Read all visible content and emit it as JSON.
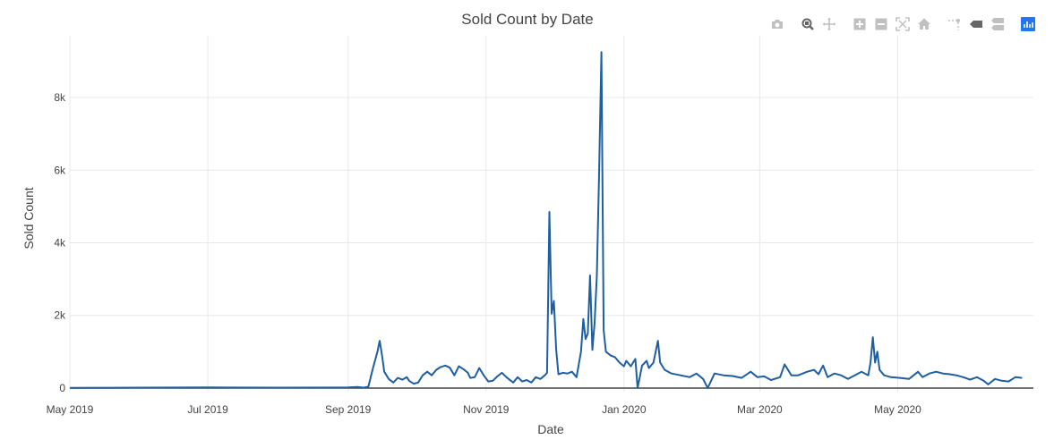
{
  "chart_data": {
    "type": "line",
    "title": "Sold Count by Date",
    "xlabel": "Date",
    "ylabel": "Sold Count",
    "x_range": [
      "2019-05-01",
      "2020-06-30"
    ],
    "ylim": [
      -100,
      9700
    ],
    "x_ticks": [
      {
        "date": "2019-05-01",
        "label": "May 2019"
      },
      {
        "date": "2019-07-01",
        "label": "Jul 2019"
      },
      {
        "date": "2019-09-01",
        "label": "Sep 2019"
      },
      {
        "date": "2019-11-01",
        "label": "Nov 2019"
      },
      {
        "date": "2020-01-01",
        "label": "Jan 2020"
      },
      {
        "date": "2020-03-01",
        "label": "Mar 2020"
      },
      {
        "date": "2020-05-01",
        "label": "May 2020"
      }
    ],
    "y_ticks": [
      {
        "value": 0,
        "label": "0"
      },
      {
        "value": 2000,
        "label": "2k"
      },
      {
        "value": 4000,
        "label": "4k"
      },
      {
        "value": 6000,
        "label": "6k"
      },
      {
        "value": 8000,
        "label": "8k"
      }
    ],
    "grid": true,
    "line_color": "#1f5f9f",
    "series": [
      {
        "name": "",
        "points": [
          [
            "2019-05-01",
            5
          ],
          [
            "2019-06-01",
            10
          ],
          [
            "2019-07-01",
            15
          ],
          [
            "2019-08-01",
            10
          ],
          [
            "2019-09-01",
            15
          ],
          [
            "2019-09-05",
            30
          ],
          [
            "2019-09-08",
            10
          ],
          [
            "2019-09-10",
            40
          ],
          [
            "2019-09-12",
            550
          ],
          [
            "2019-09-14",
            1000
          ],
          [
            "2019-09-15",
            1300
          ],
          [
            "2019-09-16",
            900
          ],
          [
            "2019-09-17",
            450
          ],
          [
            "2019-09-19",
            250
          ],
          [
            "2019-09-21",
            150
          ],
          [
            "2019-09-23",
            280
          ],
          [
            "2019-09-25",
            230
          ],
          [
            "2019-09-27",
            300
          ],
          [
            "2019-09-28",
            200
          ],
          [
            "2019-09-30",
            120
          ],
          [
            "2019-10-02",
            150
          ],
          [
            "2019-10-04",
            350
          ],
          [
            "2019-10-06",
            450
          ],
          [
            "2019-10-08",
            350
          ],
          [
            "2019-10-10",
            500
          ],
          [
            "2019-10-12",
            580
          ],
          [
            "2019-10-14",
            620
          ],
          [
            "2019-10-16",
            560
          ],
          [
            "2019-10-18",
            350
          ],
          [
            "2019-10-20",
            600
          ],
          [
            "2019-10-22",
            520
          ],
          [
            "2019-10-24",
            420
          ],
          [
            "2019-10-25",
            280
          ],
          [
            "2019-10-27",
            300
          ],
          [
            "2019-10-29",
            550
          ],
          [
            "2019-10-31",
            350
          ],
          [
            "2019-11-02",
            180
          ],
          [
            "2019-11-04",
            200
          ],
          [
            "2019-11-06",
            320
          ],
          [
            "2019-11-08",
            420
          ],
          [
            "2019-11-10",
            300
          ],
          [
            "2019-11-12",
            200
          ],
          [
            "2019-11-13",
            150
          ],
          [
            "2019-11-15",
            300
          ],
          [
            "2019-11-17",
            180
          ],
          [
            "2019-11-19",
            220
          ],
          [
            "2019-11-21",
            150
          ],
          [
            "2019-11-23",
            300
          ],
          [
            "2019-11-25",
            250
          ],
          [
            "2019-11-27",
            350
          ],
          [
            "2019-11-28",
            420
          ],
          [
            "2019-11-29",
            4850
          ],
          [
            "2019-11-30",
            2050
          ],
          [
            "2019-12-01",
            2400
          ],
          [
            "2019-12-02",
            1050
          ],
          [
            "2019-12-03",
            380
          ],
          [
            "2019-12-05",
            420
          ],
          [
            "2019-12-07",
            400
          ],
          [
            "2019-12-09",
            450
          ],
          [
            "2019-12-11",
            300
          ],
          [
            "2019-12-13",
            1000
          ],
          [
            "2019-12-14",
            1900
          ],
          [
            "2019-12-15",
            1350
          ],
          [
            "2019-12-16",
            1500
          ],
          [
            "2019-12-17",
            3100
          ],
          [
            "2019-12-18",
            1050
          ],
          [
            "2019-12-19",
            1800
          ],
          [
            "2019-12-20",
            3100
          ],
          [
            "2019-12-21",
            5900
          ],
          [
            "2019-12-22",
            9250
          ],
          [
            "2019-12-23",
            1600
          ],
          [
            "2019-12-24",
            1000
          ],
          [
            "2019-12-26",
            900
          ],
          [
            "2019-12-28",
            850
          ],
          [
            "2019-12-30",
            700
          ],
          [
            "2020-01-01",
            600
          ],
          [
            "2020-01-02",
            750
          ],
          [
            "2020-01-04",
            600
          ],
          [
            "2020-01-06",
            800
          ],
          [
            "2020-01-07",
            0
          ],
          [
            "2020-01-09",
            620
          ],
          [
            "2020-01-11",
            750
          ],
          [
            "2020-01-12",
            550
          ],
          [
            "2020-01-14",
            700
          ],
          [
            "2020-01-16",
            1300
          ],
          [
            "2020-01-17",
            700
          ],
          [
            "2020-01-19",
            500
          ],
          [
            "2020-01-22",
            400
          ],
          [
            "2020-01-26",
            350
          ],
          [
            "2020-01-30",
            300
          ],
          [
            "2020-02-02",
            400
          ],
          [
            "2020-02-05",
            250
          ],
          [
            "2020-02-07",
            0
          ],
          [
            "2020-02-10",
            400
          ],
          [
            "2020-02-14",
            350
          ],
          [
            "2020-02-18",
            330
          ],
          [
            "2020-02-22",
            280
          ],
          [
            "2020-02-26",
            450
          ],
          [
            "2020-02-29",
            300
          ],
          [
            "2020-03-03",
            320
          ],
          [
            "2020-03-06",
            220
          ],
          [
            "2020-03-10",
            300
          ],
          [
            "2020-03-12",
            650
          ],
          [
            "2020-03-15",
            350
          ],
          [
            "2020-03-18",
            350
          ],
          [
            "2020-03-22",
            450
          ],
          [
            "2020-03-25",
            500
          ],
          [
            "2020-03-27",
            380
          ],
          [
            "2020-03-29",
            620
          ],
          [
            "2020-03-31",
            300
          ],
          [
            "2020-04-03",
            400
          ],
          [
            "2020-04-06",
            350
          ],
          [
            "2020-04-09",
            250
          ],
          [
            "2020-04-12",
            350
          ],
          [
            "2020-04-15",
            450
          ],
          [
            "2020-04-18",
            350
          ],
          [
            "2020-04-19",
            700
          ],
          [
            "2020-04-20",
            1400
          ],
          [
            "2020-04-21",
            700
          ],
          [
            "2020-04-22",
            1000
          ],
          [
            "2020-04-23",
            500
          ],
          [
            "2020-04-25",
            350
          ],
          [
            "2020-04-28",
            300
          ],
          [
            "2020-05-02",
            280
          ],
          [
            "2020-05-06",
            250
          ],
          [
            "2020-05-10",
            450
          ],
          [
            "2020-05-12",
            300
          ],
          [
            "2020-05-15",
            400
          ],
          [
            "2020-05-18",
            450
          ],
          [
            "2020-05-21",
            400
          ],
          [
            "2020-05-24",
            380
          ],
          [
            "2020-05-27",
            350
          ],
          [
            "2020-05-30",
            300
          ],
          [
            "2020-06-02",
            230
          ],
          [
            "2020-06-05",
            300
          ],
          [
            "2020-06-08",
            200
          ],
          [
            "2020-06-10",
            100
          ],
          [
            "2020-06-13",
            250
          ],
          [
            "2020-06-16",
            200
          ],
          [
            "2020-06-19",
            180
          ],
          [
            "2020-06-22",
            300
          ],
          [
            "2020-06-25",
            280
          ]
        ]
      }
    ]
  },
  "modebar": {
    "icons": [
      "camera-icon",
      "zoom-icon",
      "pan-icon",
      "zoom-in-icon",
      "zoom-out-icon",
      "autoscale-icon",
      "home-icon",
      "spike-lines-icon",
      "hover-closest-icon",
      "hover-compare-icon",
      "plotly-logo-icon"
    ],
    "active_color": "#1f77f4",
    "inactive_color": "#c0c0c0"
  }
}
